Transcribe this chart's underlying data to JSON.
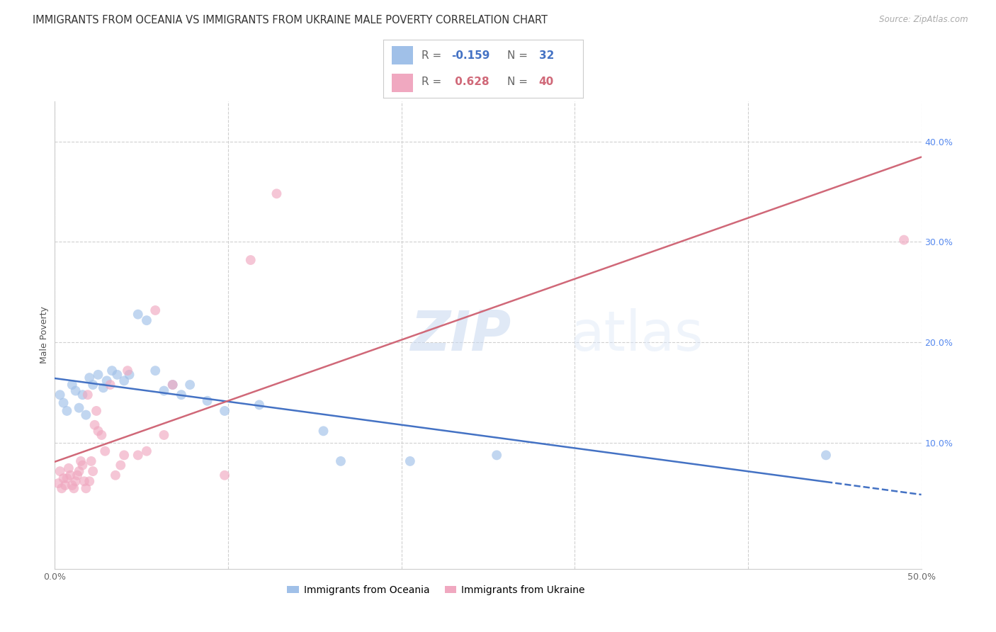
{
  "title": "IMMIGRANTS FROM OCEANIA VS IMMIGRANTS FROM UKRAINE MALE POVERTY CORRELATION CHART",
  "source": "Source: ZipAtlas.com",
  "ylabel": "Male Poverty",
  "xlim": [
    0.0,
    0.5
  ],
  "ylim": [
    -0.025,
    0.44
  ],
  "xtick_positions": [
    0.0,
    0.1,
    0.2,
    0.3,
    0.4,
    0.5
  ],
  "xticklabels": [
    "0.0%",
    "",
    "",
    "",
    "",
    "50.0%"
  ],
  "yticks_right": [
    0.1,
    0.2,
    0.3,
    0.4
  ],
  "ytick_labels_right": [
    "10.0%",
    "20.0%",
    "30.0%",
    "40.0%"
  ],
  "grid_yticks": [
    0.1,
    0.2,
    0.3,
    0.4
  ],
  "grid_xticks": [
    0.0,
    0.1,
    0.2,
    0.3,
    0.4,
    0.5
  ],
  "oceania_color": "#a0c0e8",
  "ukraine_color": "#f0a8c0",
  "oceania_line_color": "#4472c4",
  "ukraine_line_color": "#d06878",
  "R_oceania": -0.159,
  "N_oceania": 32,
  "R_ukraine": 0.628,
  "N_ukraine": 40,
  "legend_label_oceania": "Immigrants from Oceania",
  "legend_label_ukraine": "Immigrants from Ukraine",
  "oceania_points": [
    [
      0.003,
      0.148
    ],
    [
      0.005,
      0.14
    ],
    [
      0.007,
      0.132
    ],
    [
      0.01,
      0.158
    ],
    [
      0.012,
      0.152
    ],
    [
      0.014,
      0.135
    ],
    [
      0.016,
      0.148
    ],
    [
      0.018,
      0.128
    ],
    [
      0.02,
      0.165
    ],
    [
      0.022,
      0.158
    ],
    [
      0.025,
      0.168
    ],
    [
      0.028,
      0.155
    ],
    [
      0.03,
      0.162
    ],
    [
      0.033,
      0.172
    ],
    [
      0.036,
      0.168
    ],
    [
      0.04,
      0.162
    ],
    [
      0.043,
      0.168
    ],
    [
      0.048,
      0.228
    ],
    [
      0.053,
      0.222
    ],
    [
      0.058,
      0.172
    ],
    [
      0.063,
      0.152
    ],
    [
      0.068,
      0.158
    ],
    [
      0.073,
      0.148
    ],
    [
      0.078,
      0.158
    ],
    [
      0.088,
      0.142
    ],
    [
      0.098,
      0.132
    ],
    [
      0.118,
      0.138
    ],
    [
      0.155,
      0.112
    ],
    [
      0.165,
      0.082
    ],
    [
      0.205,
      0.082
    ],
    [
      0.255,
      0.088
    ],
    [
      0.445,
      0.088
    ]
  ],
  "ukraine_points": [
    [
      0.002,
      0.06
    ],
    [
      0.003,
      0.072
    ],
    [
      0.004,
      0.055
    ],
    [
      0.005,
      0.065
    ],
    [
      0.006,
      0.058
    ],
    [
      0.007,
      0.065
    ],
    [
      0.008,
      0.075
    ],
    [
      0.009,
      0.068
    ],
    [
      0.01,
      0.058
    ],
    [
      0.011,
      0.055
    ],
    [
      0.012,
      0.062
    ],
    [
      0.013,
      0.068
    ],
    [
      0.014,
      0.072
    ],
    [
      0.015,
      0.082
    ],
    [
      0.016,
      0.078
    ],
    [
      0.017,
      0.062
    ],
    [
      0.018,
      0.055
    ],
    [
      0.019,
      0.148
    ],
    [
      0.02,
      0.062
    ],
    [
      0.021,
      0.082
    ],
    [
      0.022,
      0.072
    ],
    [
      0.023,
      0.118
    ],
    [
      0.024,
      0.132
    ],
    [
      0.025,
      0.112
    ],
    [
      0.027,
      0.108
    ],
    [
      0.029,
      0.092
    ],
    [
      0.032,
      0.158
    ],
    [
      0.035,
      0.068
    ],
    [
      0.038,
      0.078
    ],
    [
      0.04,
      0.088
    ],
    [
      0.042,
      0.172
    ],
    [
      0.048,
      0.088
    ],
    [
      0.053,
      0.092
    ],
    [
      0.058,
      0.232
    ],
    [
      0.063,
      0.108
    ],
    [
      0.068,
      0.158
    ],
    [
      0.098,
      0.068
    ],
    [
      0.113,
      0.282
    ],
    [
      0.128,
      0.348
    ],
    [
      0.49,
      0.302
    ]
  ],
  "background_color": "#ffffff",
  "title_fontsize": 10.5,
  "axis_label_fontsize": 9,
  "tick_fontsize": 9,
  "marker_size": 100,
  "marker_alpha": 0.65,
  "line_width": 1.8
}
